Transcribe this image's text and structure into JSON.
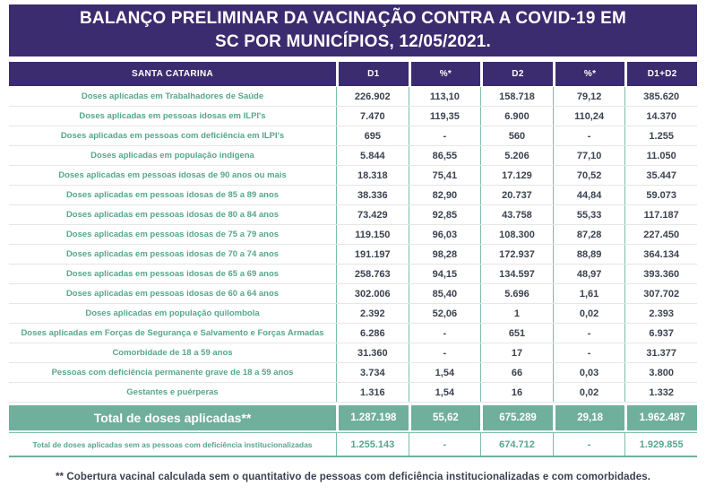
{
  "title": {
    "line1": "BALANÇO PRELIMINAR DA VACINAÇÃO CONTRA A COVID-19 EM",
    "line2": "SC POR MUNICÍPIOS, 12/05/2021."
  },
  "chart_data": {
    "type": "table",
    "title": "BALANÇO PRELIMINAR DA VACINAÇÃO CONTRA A COVID-19 EM SC POR MUNICÍPIOS, 12/05/2021.",
    "columns": [
      "SANTA CATARINA",
      "D1",
      "%*",
      "D2",
      "%*",
      "D1+D2"
    ],
    "rows": [
      [
        "Doses aplicadas em Trabalhadores de Saúde",
        "226.902",
        "113,10",
        "158.718",
        "79,12",
        "385.620"
      ],
      [
        "Doses aplicadas em pessoas idosas em ILPI's",
        "7.470",
        "119,35",
        "6.900",
        "110,24",
        "14.370"
      ],
      [
        "Doses aplicadas em pessoas com deficiência em ILPI's",
        "695",
        "-",
        "560",
        "-",
        "1.255"
      ],
      [
        "Doses aplicadas em população indígena",
        "5.844",
        "86,55",
        "5.206",
        "77,10",
        "11.050"
      ],
      [
        "Doses aplicadas em pessoas idosas  de 90 anos ou mais",
        "18.318",
        "75,41",
        "17.129",
        "70,52",
        "35.447"
      ],
      [
        "Doses aplicadas em pessoas idosas de 85 a 89 anos",
        "38.336",
        "82,90",
        "20.737",
        "44,84",
        "59.073"
      ],
      [
        "Doses aplicadas em pessoas idosas de 80 a 84 anos",
        "73.429",
        "92,85",
        "43.758",
        "55,33",
        "117.187"
      ],
      [
        "Doses aplicadas em pessoas idosas de 75 a 79 anos",
        "119.150",
        "96,03",
        "108.300",
        "87,28",
        "227.450"
      ],
      [
        "Doses aplicadas em pessoas idosas de 70 a 74 anos",
        "191.197",
        "98,28",
        "172.937",
        "88,89",
        "364.134"
      ],
      [
        "Doses aplicadas em pessoas idosas de 65 a 69 anos",
        "258.763",
        "94,15",
        "134.597",
        "48,97",
        "393.360"
      ],
      [
        "Doses aplicadas em pessoas idosas de 60 a 64 anos",
        "302.006",
        "85,40",
        "5.696",
        "1,61",
        "307.702"
      ],
      [
        "Doses aplicadas em população quilombola",
        "2.392",
        "52,06",
        "1",
        "0,02",
        "2.393"
      ],
      [
        "Doses aplicadas em Forças de Segurança e Salvamento e Forças Armadas",
        "6.286",
        "-",
        "651",
        "-",
        "6.937"
      ],
      [
        "Comorbidade de 18 a 59 anos",
        "31.360",
        "-",
        "17",
        "-",
        "31.377"
      ],
      [
        "Pessoas com deficiência permanente grave de 18 a 59 anos",
        "3.734",
        "1,54",
        "66",
        "0,03",
        "3.800"
      ],
      [
        "Gestantes e puérperas",
        "1.316",
        "1,54",
        "16",
        "0,02",
        "1.332"
      ]
    ],
    "total_row": [
      "Total de doses aplicadas**",
      "1.287.198",
      "55,62",
      "675.289",
      "29,18",
      "1.962.487"
    ],
    "subtotal_row": [
      "Total de doses aplicadas sem as pessoas com deficiência institucionalizadas",
      "1.255.143",
      "-",
      "674.712",
      "-",
      "1.929.855"
    ]
  },
  "footnote": "** Cobertura vacinal calculada sem o quantitativo de pessoas com deficiência institucionalizadas e com comorbidades.",
  "colors": {
    "banner_purple": "#3B2B6F",
    "total_teal": "#6FAF9C",
    "label_teal": "#55A78C",
    "value_ink": "#3B4250"
  }
}
